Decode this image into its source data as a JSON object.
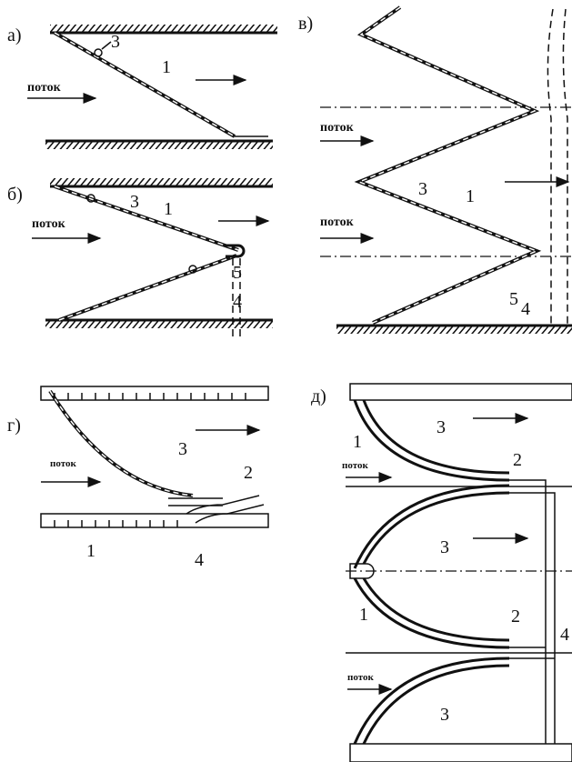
{
  "panels": [
    {
      "label": "а)",
      "flow": "поток",
      "callouts": [
        "3",
        "1"
      ]
    },
    {
      "label": "б)",
      "flow": "поток",
      "callouts": [
        "3",
        "1",
        "5",
        "4"
      ]
    },
    {
      "label": "в)",
      "flows": [
        "поток",
        "поток"
      ],
      "callouts": [
        "3",
        "1",
        "5",
        "4"
      ]
    },
    {
      "label": "г)",
      "flow": "поток",
      "callouts": [
        "3",
        "2",
        "1",
        "4"
      ]
    },
    {
      "label": "д)",
      "flows": [
        "поток",
        "поток"
      ],
      "callouts": [
        "1",
        "3",
        "2",
        "3",
        "1",
        "2",
        "3",
        "4"
      ]
    }
  ]
}
